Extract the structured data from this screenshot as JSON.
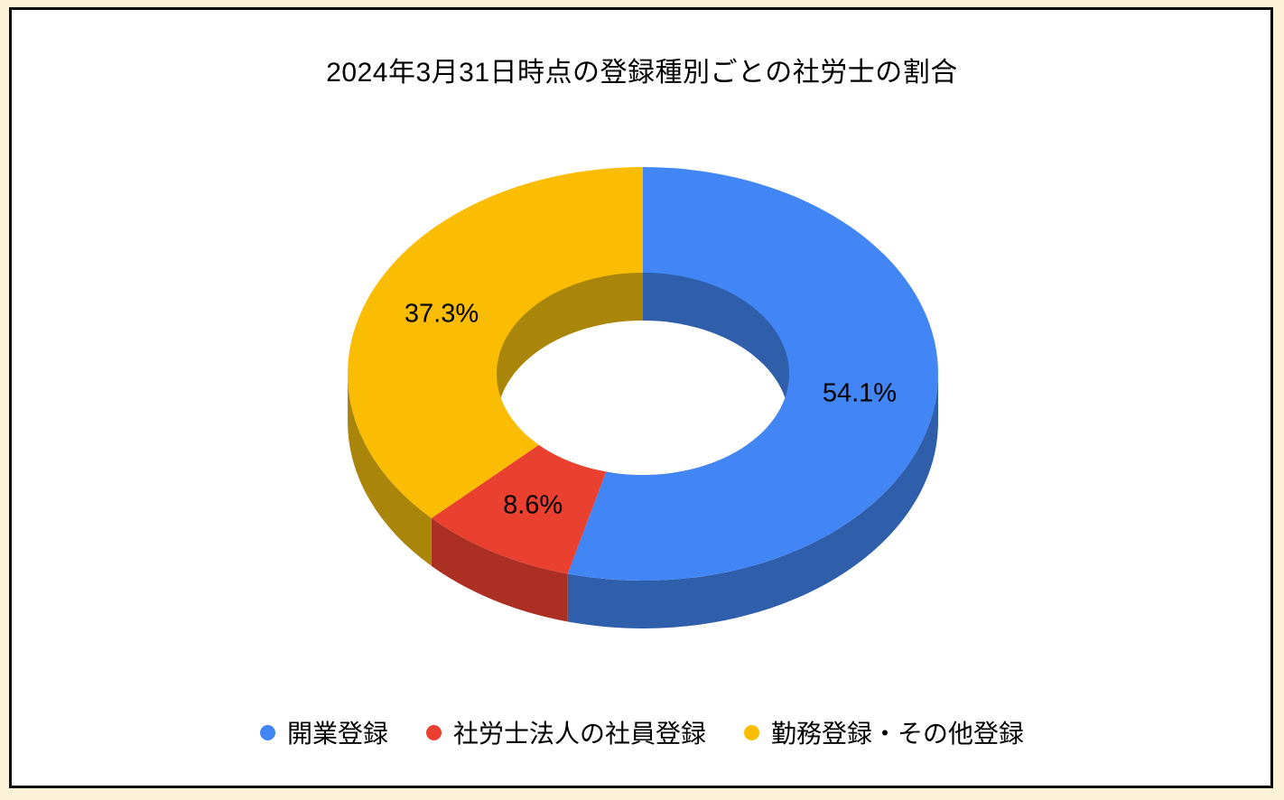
{
  "page": {
    "background": "#FBF2D8",
    "frame_border": "#0B0B0B",
    "frame_background": "#FFFFFF"
  },
  "chart_data": {
    "type": "pie",
    "style": "3d-donut",
    "title": "2024年3月31日時点の登録種別ごとの社労士の割合",
    "direction": "clockwise",
    "start_angle_deg": 0,
    "legend_position": "bottom",
    "label_color": "#000000",
    "hole_fill": "#FFFFFF",
    "slices": [
      {
        "label": "開業登録",
        "value": 54.1,
        "display": "54.1%",
        "color": "#4285F4",
        "dark_color": "#2F5EAA"
      },
      {
        "label": "社労士法人の社員登録",
        "value": 8.6,
        "display": "8.6%",
        "color": "#E9402F",
        "dark_color": "#AC2F24"
      },
      {
        "label": "勤務登録・その他登録",
        "value": 37.3,
        "display": "37.3%",
        "color": "#FBBC04",
        "dark_color": "#A9860A"
      }
    ]
  }
}
